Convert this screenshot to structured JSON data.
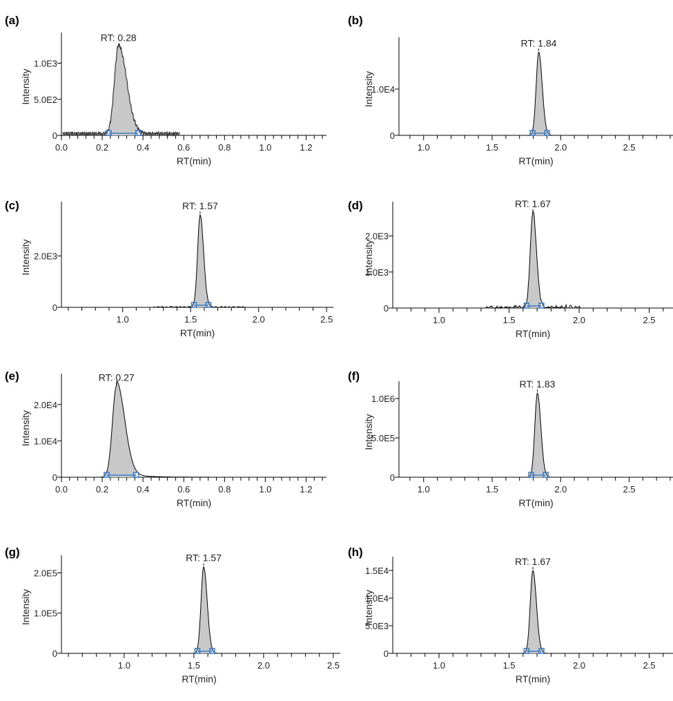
{
  "chart_data": [
    {
      "panel": "(a)",
      "type": "line",
      "xlabel": "RT(min)",
      "ylabel": "Intensity",
      "xlim": [
        0.0,
        1.3
      ],
      "ylim": [
        0,
        1350
      ],
      "xticks": [
        0.0,
        0.2,
        0.4,
        0.6,
        0.8,
        1.0,
        1.2
      ],
      "xtick_labels": [
        "0.0",
        "0.2",
        "0.4",
        "0.6",
        "0.8",
        "1.0",
        "1.2"
      ],
      "yticks": [
        0,
        500,
        1000
      ],
      "ytick_labels": [
        "0",
        "5.0E2",
        "1.0E3"
      ],
      "peak_rt": 0.28,
      "peak_label": "RT: 0.28",
      "peak_height": 1230,
      "trace_end": 0.58,
      "noise": 45
    },
    {
      "panel": "(b)",
      "type": "line",
      "xlabel": "RT(min)",
      "ylabel": "Intensity",
      "xlim": [
        0.82,
        2.82
      ],
      "ylim": [
        0,
        20000
      ],
      "xticks": [
        1.0,
        1.5,
        2.0,
        2.5
      ],
      "xtick_labels": [
        "1.0",
        "1.5",
        "2.0",
        "2.5"
      ],
      "yticks": [
        0,
        10000
      ],
      "ytick_labels": [
        "0",
        "1.0E4"
      ],
      "peak_rt": 1.84,
      "peak_label": "RT: 1.84",
      "peak_height": 18000
    },
    {
      "panel": "(c)",
      "type": "line",
      "xlabel": "RT(min)",
      "ylabel": "Intensity",
      "xlim": [
        0.55,
        2.55
      ],
      "ylim": [
        0,
        3900
      ],
      "xticks": [
        1.0,
        1.5,
        2.0,
        2.5
      ],
      "xtick_labels": [
        "1.0",
        "1.5",
        "2.0",
        "2.5"
      ],
      "yticks": [
        0,
        2000
      ],
      "ytick_labels": [
        "0",
        "2.0E3"
      ],
      "peak_rt": 1.57,
      "peak_label": "RT: 1.57",
      "peak_height": 3600,
      "noise": 40
    },
    {
      "panel": "(d)",
      "type": "line",
      "xlabel": "RT(min)",
      "ylabel": "Intensity",
      "xlim": [
        0.67,
        2.67
      ],
      "ylim": [
        0,
        2800
      ],
      "xticks": [
        1.0,
        1.5,
        2.0,
        2.5
      ],
      "xtick_labels": [
        "1.0",
        "1.5",
        "2.0",
        "2.5"
      ],
      "yticks": [
        0,
        1000,
        2000
      ],
      "ytick_labels": [
        "0",
        "1.0E3",
        "2.0E3"
      ],
      "peak_rt": 1.67,
      "peak_label": "RT: 1.67",
      "peak_height": 2650,
      "noise": 90
    },
    {
      "panel": "(e)",
      "type": "line",
      "xlabel": "RT(min)",
      "ylabel": "Intensity",
      "xlim": [
        0.0,
        1.3
      ],
      "ylim": [
        0,
        27000
      ],
      "xticks": [
        0.0,
        0.2,
        0.4,
        0.6,
        0.8,
        1.0,
        1.2
      ],
      "xtick_labels": [
        "0.0",
        "0.2",
        "0.4",
        "0.6",
        "0.8",
        "1.0",
        "1.2"
      ],
      "yticks": [
        0,
        10000,
        20000
      ],
      "ytick_labels": [
        "0",
        "1.0E4",
        "2.0E4"
      ],
      "peak_rt": 0.27,
      "peak_label": "RT: 0.27",
      "peak_height": 25000,
      "tail": true
    },
    {
      "panel": "(f)",
      "type": "line",
      "xlabel": "RT(min)",
      "ylabel": "Intensity",
      "xlim": [
        0.82,
        2.82
      ],
      "ylim": [
        0,
        1150000
      ],
      "xticks": [
        1.0,
        1.5,
        2.0,
        2.5
      ],
      "xtick_labels": [
        "1.0",
        "1.5",
        "2.0",
        "2.5"
      ],
      "yticks": [
        0,
        500000,
        1000000
      ],
      "ytick_labels": [
        "0",
        "5.0E5",
        "1.0E6"
      ],
      "peak_rt": 1.83,
      "peak_label": "RT: 1.83",
      "peak_height": 1070000
    },
    {
      "panel": "(g)",
      "type": "line",
      "xlabel": "RT(min)",
      "ylabel": "Intensity",
      "xlim": [
        0.55,
        2.55
      ],
      "ylim": [
        0,
        230000
      ],
      "xticks": [
        1.0,
        1.5,
        2.0,
        2.5
      ],
      "xtick_labels": [
        "1.0",
        "1.5",
        "2.0",
        "2.5"
      ],
      "yticks": [
        0,
        100000,
        200000
      ],
      "ytick_labels": [
        "0",
        "1.0E5",
        "2.0E5"
      ],
      "peak_rt": 1.57,
      "peak_label": "RT: 1.57",
      "peak_height": 215000
    },
    {
      "panel": "(h)",
      "type": "line",
      "xlabel": "RT(min)",
      "ylabel": "Intensity",
      "xlim": [
        0.67,
        2.67
      ],
      "ylim": [
        0,
        16500
      ],
      "xticks": [
        1.0,
        1.5,
        2.0,
        2.5
      ],
      "xtick_labels": [
        "1.0",
        "1.5",
        "2.0",
        "2.5"
      ],
      "yticks": [
        0,
        5000,
        10000,
        15000
      ],
      "ytick_labels": [
        "0",
        "5.0E3",
        "1.0E4",
        "1.5E4"
      ],
      "peak_rt": 1.67,
      "peak_label": "RT: 1.67",
      "peak_height": 15000
    }
  ]
}
